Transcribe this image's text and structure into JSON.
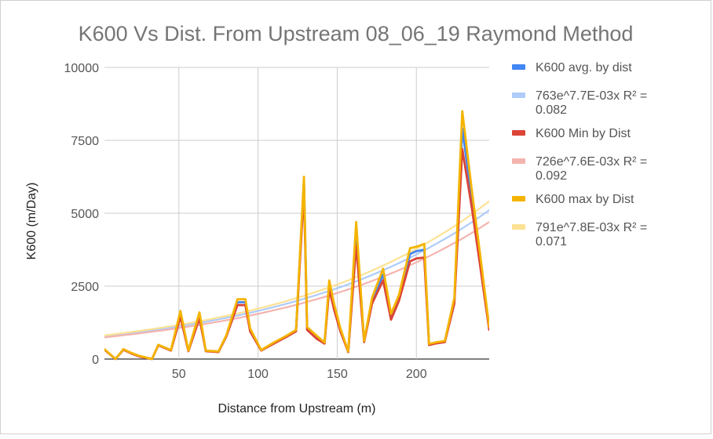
{
  "chart_data": {
    "type": "line",
    "title": "K600 Vs Dist. From Upstream 08_06_19 Raymond Method",
    "xlabel": "Distance from Upstream (m)",
    "ylabel": "K600 (m/Day)",
    "xlim": [
      3,
      246
    ],
    "ylim": [
      0,
      10000
    ],
    "x_ticks": [
      50,
      100,
      150,
      200
    ],
    "x_tick_labels": [
      "50",
      "100",
      "150",
      "200"
    ],
    "y_ticks": [
      0,
      2500,
      5000,
      7500,
      10000
    ],
    "y_tick_labels": [
      "0",
      "2500",
      "5000",
      "7500",
      "10000"
    ],
    "grid": true,
    "legend_position": "right",
    "x": [
      3,
      10,
      15,
      20,
      25,
      33,
      37,
      45,
      51,
      56,
      63,
      67,
      75,
      80,
      87,
      92,
      95,
      102,
      110,
      118,
      124,
      129,
      131,
      137,
      142,
      145,
      148,
      152,
      157,
      162,
      167,
      172,
      179,
      184,
      189,
      196,
      200,
      205,
      208,
      212,
      218,
      224,
      229,
      235,
      240,
      246
    ],
    "series": [
      {
        "name": "K600 avg. by dist",
        "color": "#4285f4",
        "kind": "data",
        "values": [
          330,
          0,
          330,
          200,
          100,
          0,
          480,
          300,
          1550,
          280,
          1500,
          280,
          250,
          800,
          1950,
          1950,
          1000,
          300,
          550,
          780,
          980,
          6100,
          1050,
          750,
          550,
          2550,
          1800,
          1000,
          250,
          4300,
          600,
          2000,
          2900,
          1450,
          2100,
          3600,
          3700,
          3750,
          500,
          550,
          600,
          2000,
          7900,
          5500,
          3500,
          1050
        ]
      },
      {
        "name": "763e^7.7E-03x R² = 0.082",
        "color": "#aecbfa",
        "kind": "trend",
        "values": [
          781,
          825,
          859,
          893,
          928,
          987,
          1017,
          1080,
          1131,
          1175,
          1240,
          1279,
          1359,
          1413,
          1492,
          1551,
          1587,
          1675,
          1782,
          1895,
          1985,
          2064,
          2096,
          2196,
          2284,
          2337,
          2392,
          2466,
          2564,
          2666,
          2772,
          2882,
          3044,
          3165,
          3291,
          3477,
          3586,
          3728,
          3815,
          3935,
          4118,
          4310,
          4481,
          4690,
          4876,
          5103
        ]
      },
      {
        "name": "K600 Min by Dist",
        "color": "#db4437",
        "kind": "data",
        "values": [
          320,
          0,
          320,
          190,
          90,
          0,
          470,
          290,
          1450,
          270,
          1400,
          270,
          240,
          780,
          1850,
          1850,
          950,
          290,
          530,
          760,
          950,
          5800,
          1000,
          700,
          530,
          2400,
          1700,
          950,
          240,
          3900,
          580,
          1900,
          2700,
          1350,
          2000,
          3350,
          3450,
          3480,
          480,
          530,
          580,
          1900,
          7200,
          5200,
          3300,
          1000
        ]
      },
      {
        "name": "726e^7.6E-03x R² = 0.092",
        "color": "#f4b4ae",
        "kind": "trend",
        "values": [
          743,
          783,
          815,
          847,
          880,
          935,
          963,
          1022,
          1069,
          1110,
          1170,
          1206,
          1281,
          1331,
          1403,
          1458,
          1491,
          1572,
          1671,
          1775,
          1857,
          1929,
          1959,
          2050,
          2130,
          2179,
          2229,
          2298,
          2387,
          2480,
          2577,
          2677,
          2825,
          2935,
          3049,
          3218,
          3318,
          3447,
          3526,
          3635,
          3803,
          3979,
          4132,
          4323,
          4491,
          4699
        ]
      },
      {
        "name": "K600 max by Dist",
        "color": "#f4b400",
        "kind": "data",
        "values": [
          340,
          0,
          340,
          210,
          110,
          0,
          490,
          310,
          1650,
          290,
          1600,
          290,
          260,
          820,
          2050,
          2050,
          1050,
          310,
          570,
          800,
          1000,
          6250,
          1100,
          800,
          570,
          2700,
          1900,
          1050,
          260,
          4700,
          620,
          2100,
          3100,
          1550,
          2200,
          3800,
          3850,
          3950,
          520,
          570,
          620,
          2100,
          8500,
          5800,
          3700,
          1100
        ]
      },
      {
        "name": "791e^7.8E-03x R² = 0.071",
        "color": "#fde293",
        "kind": "trend",
        "values": [
          810,
          857,
          892,
          928,
          965,
          1027,
          1060,
          1127,
          1180,
          1227,
          1295,
          1336,
          1421,
          1478,
          1560,
          1623,
          1661,
          1755,
          1869,
          1990,
          2085,
          2168,
          2202,
          2308,
          2401,
          2457,
          2515,
          2595,
          2698,
          2806,
          2918,
          3035,
          3206,
          3334,
          3467,
          3662,
          3778,
          3930,
          4023,
          4150,
          4347,
          4553,
          4734,
          4965,
          5165,
          5408
        ]
      }
    ]
  }
}
